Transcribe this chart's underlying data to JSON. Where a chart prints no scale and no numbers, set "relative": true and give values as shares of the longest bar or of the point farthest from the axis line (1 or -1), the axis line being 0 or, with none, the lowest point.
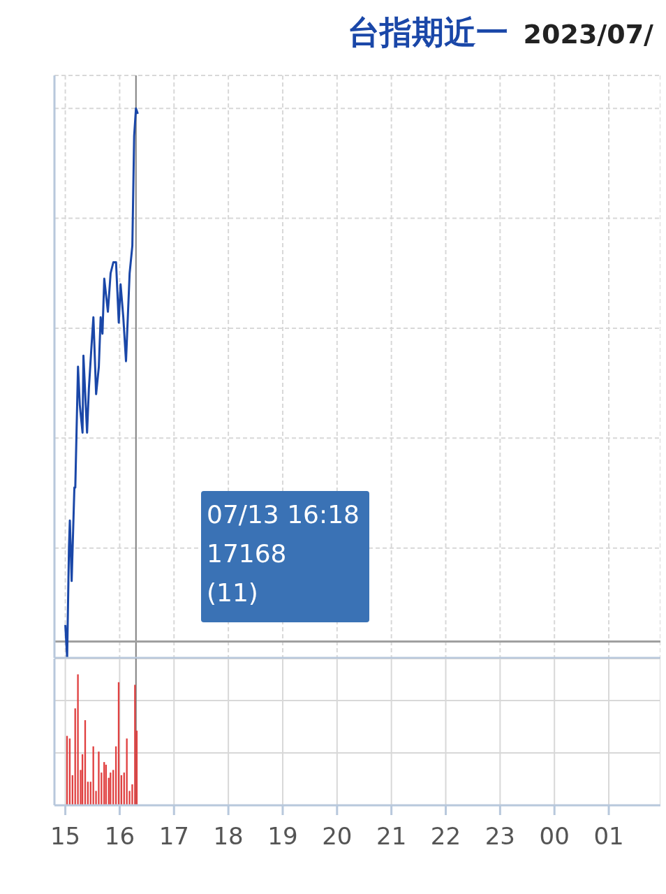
{
  "chart_data": [
    {
      "type": "line",
      "title": "台指期近一",
      "subtitle": "2023/07/",
      "relative": true,
      "x": [
        "2023-07-13T15:00",
        "2023-07-13T15:02",
        "2023-07-13T15:04",
        "2023-07-13T15:05",
        "2023-07-13T15:07",
        "2023-07-13T15:10",
        "2023-07-13T15:11",
        "2023-07-13T15:14",
        "2023-07-13T15:16",
        "2023-07-13T15:19",
        "2023-07-13T15:20",
        "2023-07-13T15:24",
        "2023-07-13T15:26",
        "2023-07-13T15:29",
        "2023-07-13T15:31",
        "2023-07-13T15:34",
        "2023-07-13T15:37",
        "2023-07-13T15:39",
        "2023-07-13T15:41",
        "2023-07-13T15:43",
        "2023-07-13T15:47",
        "2023-07-13T15:50",
        "2023-07-13T15:53",
        "2023-07-13T15:56",
        "2023-07-13T15:59",
        "2023-07-13T16:01",
        "2023-07-13T16:04",
        "2023-07-13T16:07",
        "2023-07-13T16:11",
        "2023-07-13T16:14",
        "2023-07-13T16:16",
        "2023-07-13T16:18",
        "2023-07-13T16:20"
      ],
      "series": [
        {
          "color": "#1a47a8",
          "values": [
            0.06,
            0,
            0.2,
            0.25,
            0.14,
            0.31,
            0.31,
            0.53,
            0.46,
            0.41,
            0.55,
            0.41,
            0.49,
            0.57,
            0.62,
            0.48,
            0.53,
            0.62,
            0.59,
            0.69,
            0.63,
            0.7,
            0.72,
            0.72,
            0.61,
            0.68,
            0.62,
            0.54,
            0.7,
            0.75,
            0.95,
            1,
            0.99
          ]
        }
      ],
      "xlim": [
        "2023-07-13T14:48",
        "2023-07-14T01:57"
      ],
      "xticks": [
        {
          "value": "2023-07-13T15:00",
          "label": null
        },
        {
          "value": "2023-07-13T16:00",
          "label": null
        },
        {
          "value": "2023-07-13T17:00",
          "label": null
        },
        {
          "value": "2023-07-13T18:00",
          "label": null
        },
        {
          "value": "2023-07-13T19:00",
          "label": null
        },
        {
          "value": "2023-07-13T20:00",
          "label": null
        },
        {
          "value": "2023-07-13T21:00",
          "label": null
        },
        {
          "value": "2023-07-13T22:00",
          "label": null
        },
        {
          "value": "2023-07-13T23:00",
          "label": null
        },
        {
          "value": "2023-07-14T00:00",
          "label": null
        },
        {
          "value": "2023-07-14T01:00",
          "label": null
        }
      ],
      "tick_labels": false,
      "grid": true,
      "ref_lines": [
        {
          "axis": "y",
          "value": 0.03,
          "color": "#a0a0a0"
        },
        {
          "axis": "x",
          "value": "2023-07-13T16:18",
          "color": "#808080"
        }
      ],
      "annotations": [
        "07/13 16:18",
        "17168",
        "(11)"
      ]
    },
    {
      "type": "bar",
      "relative": true,
      "x": [
        "2023-07-13T15:02",
        "2023-07-13T15:05",
        "2023-07-13T15:08",
        "2023-07-13T15:11",
        "2023-07-13T15:14",
        "2023-07-13T15:17",
        "2023-07-13T15:19",
        "2023-07-13T15:22",
        "2023-07-13T15:25",
        "2023-07-13T15:28",
        "2023-07-13T15:31",
        "2023-07-13T15:34",
        "2023-07-13T15:37",
        "2023-07-13T15:40",
        "2023-07-13T15:43",
        "2023-07-13T15:45",
        "2023-07-13T15:48",
        "2023-07-13T15:50",
        "2023-07-13T15:53",
        "2023-07-13T15:56",
        "2023-07-13T15:59",
        "2023-07-13T16:02",
        "2023-07-13T16:05",
        "2023-07-13T16:08",
        "2023-07-13T16:11",
        "2023-07-13T16:14",
        "2023-07-13T16:17",
        "2023-07-13T16:19"
      ],
      "series": [
        {
          "color": "#e04040",
          "values": [
            0.53,
            0.51,
            0.23,
            0.74,
            1,
            0.27,
            0.39,
            0.65,
            0.18,
            0.18,
            0.45,
            0.11,
            0.41,
            0.25,
            0.33,
            0.31,
            0.21,
            0.25,
            0.27,
            0.45,
            0.94,
            0.23,
            0.25,
            0.51,
            0.11,
            0.16,
            0.92,
            0.57
          ]
        }
      ],
      "xlim": [
        "2023-07-13T14:48",
        "2023-07-14T01:57"
      ],
      "xticks": [
        {
          "value": "2023-07-13T15:00",
          "label": "15"
        },
        {
          "value": "2023-07-13T16:00",
          "label": "16"
        },
        {
          "value": "2023-07-13T17:00",
          "label": "17"
        },
        {
          "value": "2023-07-13T18:00",
          "label": "18"
        },
        {
          "value": "2023-07-13T19:00",
          "label": "19"
        },
        {
          "value": "2023-07-13T20:00",
          "label": "20"
        },
        {
          "value": "2023-07-13T21:00",
          "label": "21"
        },
        {
          "value": "2023-07-13T22:00",
          "label": "22"
        },
        {
          "value": "2023-07-13T23:00",
          "label": "23"
        },
        {
          "value": "2023-07-14T00:00",
          "label": "00"
        },
        {
          "value": "2023-07-14T01:00",
          "label": "01"
        }
      ],
      "tick_labels": "x",
      "grid": true,
      "ref_lines": [
        {
          "axis": "x",
          "value": "2023-07-13T16:18",
          "color": "#808080"
        }
      ]
    }
  ]
}
